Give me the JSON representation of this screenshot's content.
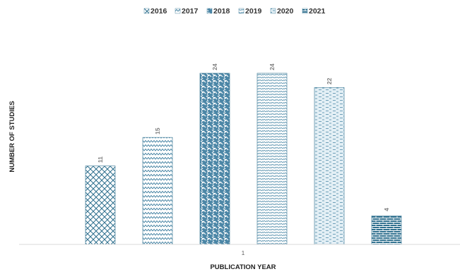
{
  "chart_data": {
    "type": "bar",
    "title": "",
    "xlabel": "PUBLICATION YEAR",
    "ylabel": "NUMBER OF STUDIES",
    "categories": [
      "1"
    ],
    "ylim": [
      0,
      24
    ],
    "grid": false,
    "legend_position": "top",
    "series": [
      {
        "name": "2016",
        "values": [
          11
        ],
        "pattern": "crosshatch"
      },
      {
        "name": "2017",
        "values": [
          15
        ],
        "pattern": "zigzag"
      },
      {
        "name": "2018",
        "values": [
          24
        ],
        "pattern": "weave"
      },
      {
        "name": "2019",
        "values": [
          24
        ],
        "pattern": "diagonal-wave"
      },
      {
        "name": "2020",
        "values": [
          22
        ],
        "pattern": "dashes"
      },
      {
        "name": "2021",
        "values": [
          4
        ],
        "pattern": "brick"
      }
    ],
    "colors": {
      "pattern_stroke": "#2e6f8e",
      "pattern_light": "#7fb1c9",
      "axis": "#d9d9d9"
    }
  }
}
